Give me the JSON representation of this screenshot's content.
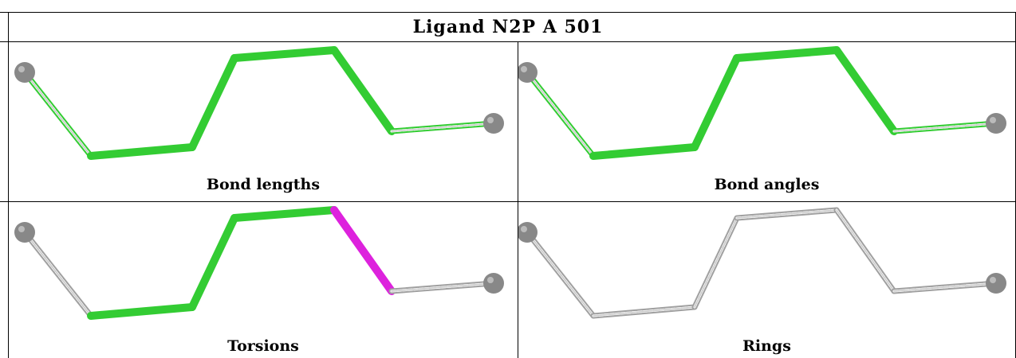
{
  "title": "Ligand N2P A 501",
  "colors": {
    "ok_bond": "#33cc33",
    "outlier_bond": "#dd22dd",
    "neutral_bond": "#c8c8c8",
    "atom": "#888888",
    "grid": "#000000"
  },
  "panels": [
    {
      "caption": "Bond lengths",
      "bonds": [
        "split",
        "ok",
        "ok",
        "ok",
        "ok",
        "split"
      ]
    },
    {
      "caption": "Bond angles",
      "bonds": [
        "split",
        "ok",
        "ok",
        "ok",
        "ok",
        "split"
      ]
    },
    {
      "caption": "Torsions",
      "bonds": [
        "gray",
        "ok",
        "ok",
        "ok",
        "outlier",
        "gray"
      ]
    },
    {
      "caption": "Rings",
      "bonds": [
        "gray",
        "gray",
        "gray",
        "gray",
        "gray",
        "gray"
      ]
    }
  ]
}
